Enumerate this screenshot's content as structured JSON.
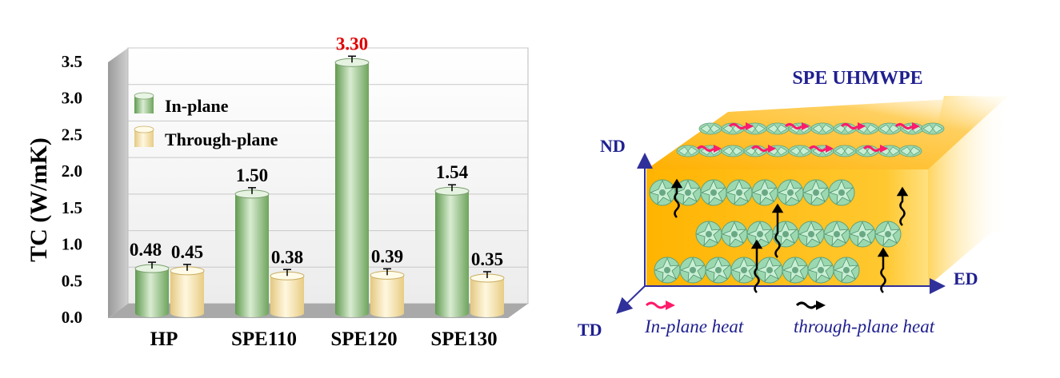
{
  "chart_data": {
    "type": "bar",
    "categories": [
      "HP",
      "SPE110",
      "SPE120",
      "SPE130"
    ],
    "series": [
      {
        "name": "In-plane",
        "values": [
          0.48,
          1.5,
          3.3,
          1.54
        ],
        "color": "#7fb06e"
      },
      {
        "name": "Through-plane",
        "values": [
          0.45,
          0.38,
          0.39,
          0.35
        ],
        "color": "#f0d890"
      }
    ],
    "ylabel": "TC (W/mK)",
    "ylim": [
      0,
      3.5
    ],
    "yticks": [
      "0.0",
      "0.5",
      "1.0",
      "1.5",
      "2.0",
      "2.5",
      "3.0",
      "3.5"
    ],
    "data_labels": [
      [
        "0.48",
        "1.50",
        "3.30",
        "1.54"
      ],
      [
        "0.45",
        "0.38",
        "0.39",
        "0.35"
      ]
    ],
    "highlight_color": "#e00000",
    "grid": true,
    "legend": "top-left"
  },
  "diagram": {
    "title": "SPE UHMWPE",
    "axes": {
      "nd": "ND",
      "td": "TD",
      "ed": "ED"
    },
    "legend": {
      "in_plane": "In-plane heat",
      "through_plane": "through-plane heat"
    },
    "colors": {
      "block": "#ffc020",
      "in_plane_arrow": "#ff1a6a",
      "through_plane_arrow": "#000000",
      "axis": "#30309a",
      "crystal": "#8ed6a8"
    }
  }
}
